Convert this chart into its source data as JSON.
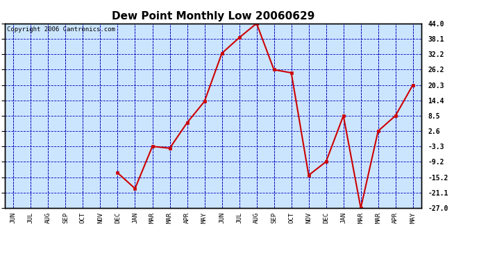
{
  "title": "Dew Point Monthly Low 20060629",
  "copyright": "Copyright 2006 Cantronics.com",
  "x_labels": [
    "JUN",
    "JUL",
    "AUG",
    "SEP",
    "OCT",
    "NOV",
    "DEC",
    "JAN",
    "MAR",
    "MAR",
    "APR",
    "MAY",
    "JUN",
    "JUL",
    "AUG",
    "SEP",
    "OCT",
    "NOV",
    "DEC",
    "JAN",
    "MAR",
    "MAR",
    "APR",
    "MAY"
  ],
  "y_values": [
    null,
    null,
    null,
    null,
    null,
    null,
    -13.5,
    -19.5,
    -3.3,
    -4.0,
    5.8,
    14.0,
    32.5,
    38.5,
    44.0,
    26.2,
    25.0,
    -14.4,
    -9.2,
    8.5,
    -27.0,
    2.6,
    8.5,
    20.3
  ],
  "yticks": [
    44.0,
    38.1,
    32.2,
    26.2,
    20.3,
    14.4,
    8.5,
    2.6,
    -3.3,
    -9.2,
    -15.2,
    -21.1,
    -27.0
  ],
  "ymin": -27.0,
  "ymax": 44.0,
  "line_color": "#cc0000",
  "marker_color": "#cc0000",
  "bg_color": "#cce5ff",
  "grid_color": "#0000bb",
  "border_color": "#000000",
  "title_fontsize": 11,
  "copyright_fontsize": 6.5
}
